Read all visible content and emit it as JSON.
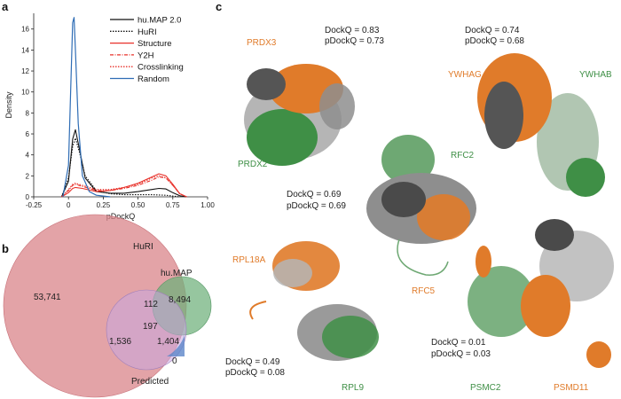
{
  "panel_letters": [
    "a",
    "b",
    "c"
  ],
  "chart_data": {
    "type": "line",
    "xlabel": "pDockQ",
    "ylabel": "Density",
    "xlim": [
      -0.25,
      1.0
    ],
    "ylim": [
      0,
      17.5
    ],
    "xticks": [
      -0.25,
      0.0,
      0.25,
      0.5,
      0.75,
      1.0
    ],
    "xtick_labels": [
      "-0.25",
      "0",
      "0.25",
      "0.50",
      "0.75",
      "1.00"
    ],
    "yticks": [
      0,
      2,
      4,
      6,
      8,
      10,
      12,
      14,
      16
    ],
    "yticks_labels": [
      "0",
      "2",
      "4",
      "6",
      "8",
      "10",
      "12",
      "14",
      "16"
    ],
    "legend_position": "top-right",
    "series": [
      {
        "name": "hu.MAP 2.0",
        "color": "#111111",
        "dash": "solid",
        "x": [
          -0.05,
          0.0,
          0.03,
          0.05,
          0.08,
          0.12,
          0.2,
          0.3,
          0.4,
          0.5,
          0.6,
          0.65,
          0.7,
          0.75,
          0.8,
          0.85
        ],
        "y": [
          0,
          1.5,
          5.5,
          6.4,
          4.5,
          1.8,
          0.5,
          0.35,
          0.35,
          0.5,
          0.7,
          0.8,
          0.75,
          0.4,
          0.1,
          0
        ]
      },
      {
        "name": "HuRI",
        "color": "#111111",
        "dash": "dotted",
        "x": [
          -0.05,
          0.0,
          0.03,
          0.05,
          0.08,
          0.12,
          0.2,
          0.3,
          0.4,
          0.5,
          0.6,
          0.7,
          0.8
        ],
        "y": [
          0,
          1.8,
          4.8,
          5.6,
          4.2,
          2.0,
          0.6,
          0.3,
          0.2,
          0.2,
          0.2,
          0.15,
          0
        ]
      },
      {
        "name": "Structure",
        "color": "#e8312a",
        "dash": "solid",
        "x": [
          -0.05,
          0.0,
          0.03,
          0.05,
          0.1,
          0.2,
          0.3,
          0.4,
          0.5,
          0.6,
          0.65,
          0.7,
          0.75,
          0.8,
          0.85
        ],
        "y": [
          0,
          0.4,
          0.8,
          0.9,
          0.8,
          0.5,
          0.6,
          0.9,
          1.3,
          1.9,
          2.2,
          2.0,
          1.2,
          0.3,
          0
        ]
      },
      {
        "name": "Y2H",
        "color": "#e8312a",
        "dash": "dashdot",
        "x": [
          -0.05,
          0.0,
          0.03,
          0.05,
          0.1,
          0.2,
          0.3,
          0.4,
          0.5,
          0.6,
          0.65,
          0.7,
          0.75,
          0.8,
          0.85
        ],
        "y": [
          0,
          0.6,
          1.1,
          1.2,
          1.0,
          0.6,
          0.6,
          0.8,
          1.1,
          1.6,
          1.9,
          1.8,
          1.1,
          0.3,
          0
        ]
      },
      {
        "name": "Crosslinking",
        "color": "#e8312a",
        "dash": "dotted",
        "x": [
          -0.05,
          0.0,
          0.03,
          0.05,
          0.1,
          0.2,
          0.3,
          0.4,
          0.5,
          0.6,
          0.65,
          0.7,
          0.75,
          0.8,
          0.85
        ],
        "y": [
          0,
          0.7,
          1.2,
          1.3,
          1.1,
          0.7,
          0.7,
          0.9,
          1.2,
          1.8,
          2.0,
          1.8,
          1.1,
          0.3,
          0
        ]
      },
      {
        "name": "Random",
        "color": "#2f6db5",
        "dash": "solid",
        "x": [
          -0.04,
          0.0,
          0.02,
          0.03,
          0.04,
          0.05,
          0.07,
          0.1,
          0.15,
          0.2,
          0.3
        ],
        "y": [
          0,
          3.0,
          12.0,
          16.6,
          17.1,
          14.0,
          7.0,
          2.0,
          0.5,
          0.15,
          0
        ]
      }
    ]
  },
  "venn": {
    "sets": [
      {
        "label": "HuRI",
        "color": "#d9848a"
      },
      {
        "label": "hu.MAP",
        "color": "#6db07a"
      },
      {
        "label": "Predicted",
        "color": "#c9a7e0"
      }
    ],
    "regions": {
      "huri_only": "53,741",
      "humap_only": "8,494",
      "huri_humap": "112",
      "all_three": "197",
      "huri_pred": "1,536",
      "humap_pred": "1,404",
      "pred_only": "0"
    }
  },
  "structures": [
    {
      "chain_a": "PRDX3",
      "chain_b": "PRDX2",
      "dockq": "DockQ = 0.83",
      "pdockq": "pDockQ = 0.73"
    },
    {
      "chain_a": "YWHAG",
      "chain_b": "YWHAB",
      "dockq": "DockQ = 0.74",
      "pdockq": "pDockQ = 0.68"
    },
    {
      "chain_a": "RFC5",
      "chain_b": "RFC2",
      "dockq": "DockQ = 0.69",
      "pdockq": "pDockQ = 0.69"
    },
    {
      "chain_a": "RPL18A",
      "chain_b": "RPL9",
      "dockq": "DockQ = 0.49",
      "pdockq": "pDockQ = 0.08"
    },
    {
      "chain_a": "PSMD11",
      "chain_b": "PSMC2",
      "dockq": "DockQ = 0.01",
      "pdockq": "pDockQ = 0.03"
    }
  ],
  "colors": {
    "orange": "#e07b2a",
    "green": "#3f8f46",
    "grey": "#9a9a9a",
    "dark": "#555555"
  }
}
